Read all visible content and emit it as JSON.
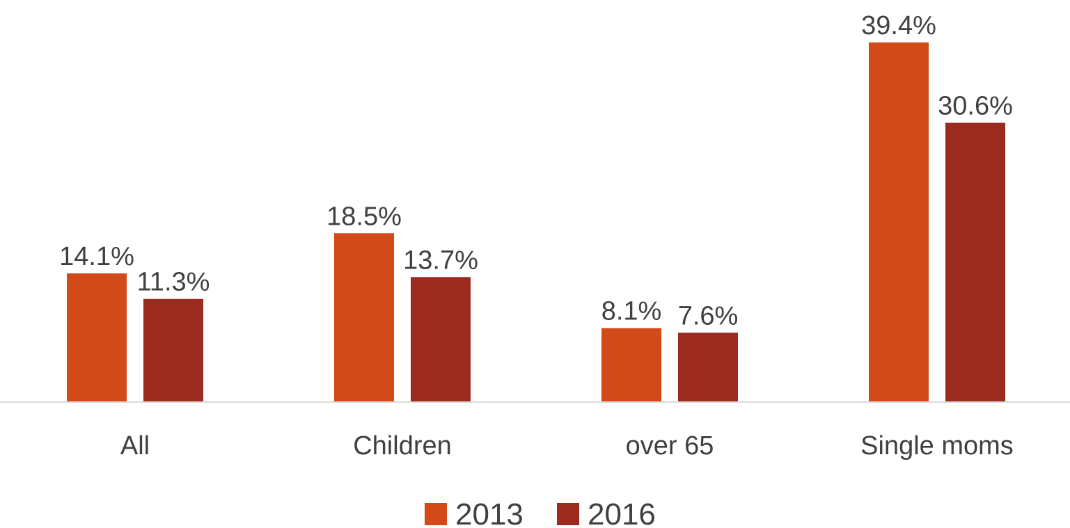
{
  "chart_data": {
    "type": "bar",
    "categories": [
      "All",
      "Children",
      "over 65",
      "Single moms"
    ],
    "series": [
      {
        "name": "2013",
        "color": "#D24A17",
        "values": [
          14.1,
          18.5,
          8.1,
          39.4
        ],
        "labels": [
          "14.1%",
          "18.5%",
          "8.1%",
          "39.4%"
        ]
      },
      {
        "name": "2016",
        "color": "#9C2B1F",
        "values": [
          11.3,
          13.7,
          7.6,
          30.6
        ],
        "labels": [
          "11.3%",
          "13.7%",
          "7.6%",
          "30.6%"
        ]
      }
    ],
    "title": "",
    "xlabel": "",
    "ylabel": "",
    "ylim": [
      0,
      40
    ],
    "grid": false,
    "legend_position": "bottom-center",
    "axis_color": "#D9D9D9"
  }
}
